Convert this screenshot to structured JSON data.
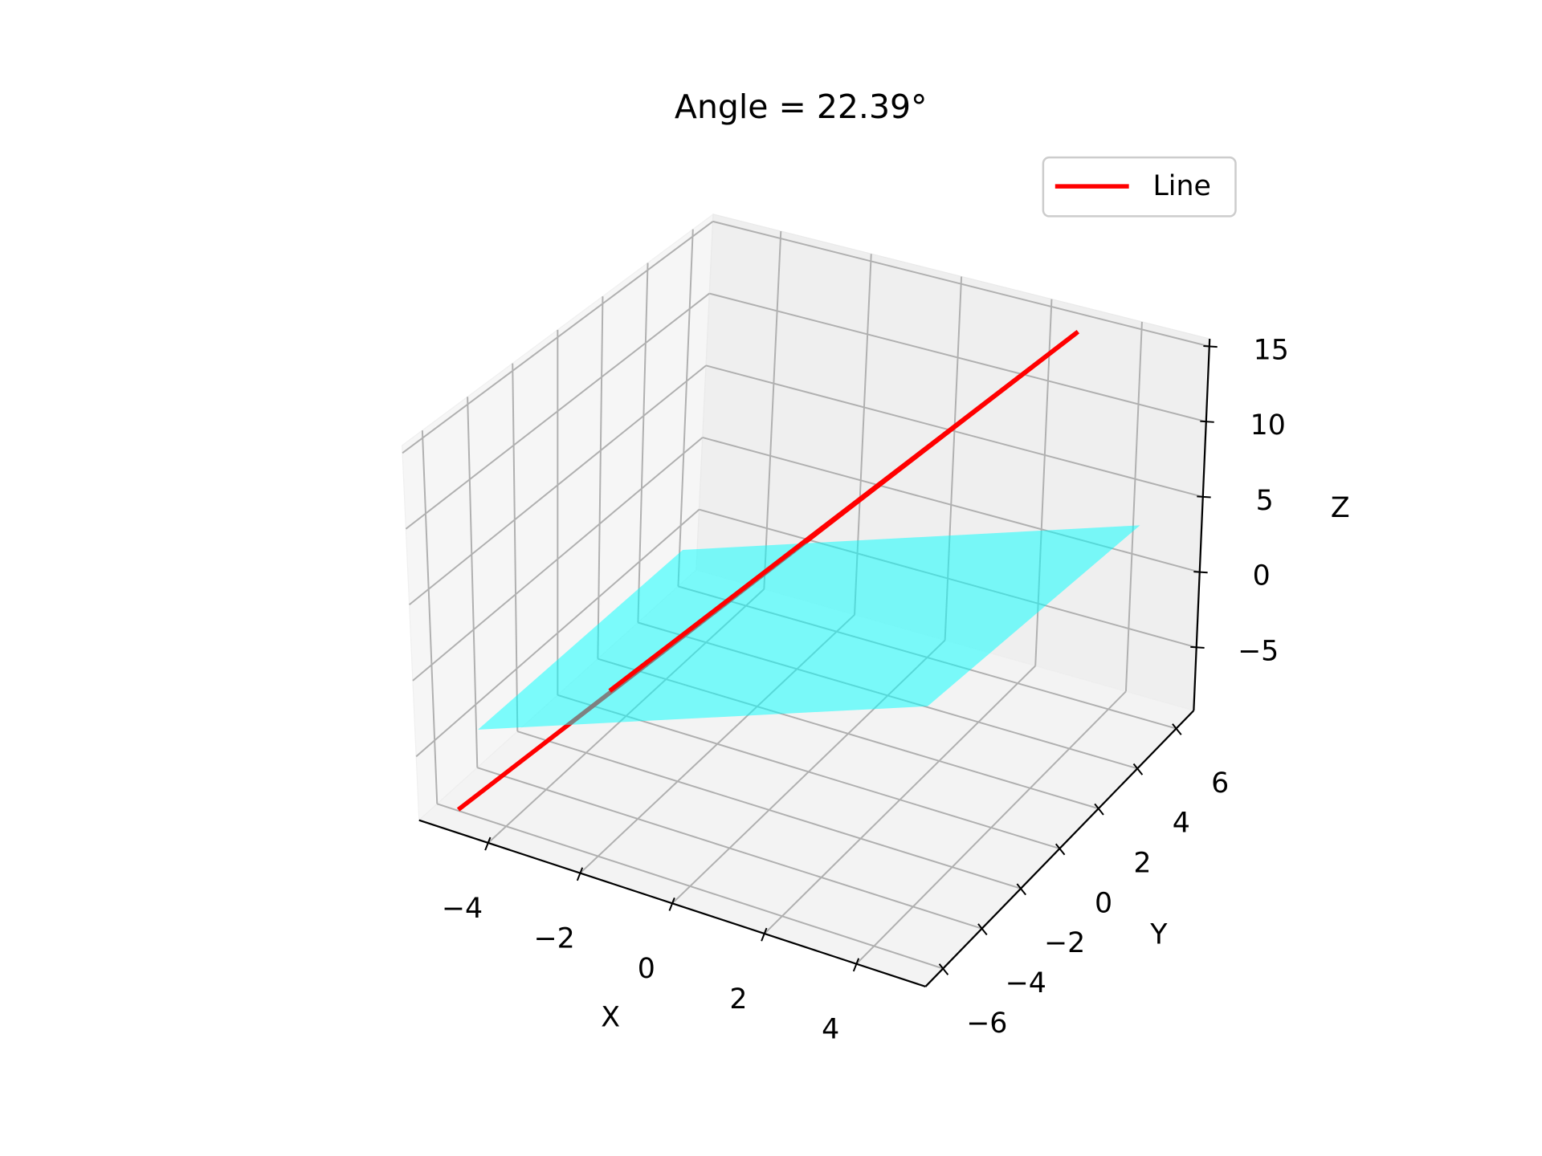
{
  "chart_data": {
    "type": "line3d",
    "title": "Angle = 22.39°",
    "xlabel": "X",
    "ylabel": "Y",
    "zlabel": "Z",
    "xlim": [
      -5.5,
      5.5
    ],
    "ylim": [
      -6.9,
      6.9
    ],
    "zlim": [
      -9.2,
      15.5
    ],
    "xticks": [
      {
        "value": -4,
        "label": "−4"
      },
      {
        "value": -2,
        "label": "−2"
      },
      0,
      2,
      4
    ],
    "yticks": [
      {
        "value": -6,
        "label": "−6"
      },
      {
        "value": -4,
        "label": "−4"
      },
      {
        "value": -2,
        "label": "−2"
      },
      0,
      2,
      4,
      6
    ],
    "zticks": [
      {
        "value": -5,
        "label": "−5"
      },
      0,
      5,
      10,
      15
    ],
    "grid": true,
    "legend": "upper right",
    "series": [
      {
        "name": "Line",
        "color": "#ff0000",
        "x": [
          -5,
          3
        ],
        "y": [
          -6,
          6
        ],
        "z": [
          -9,
          15
        ]
      }
    ],
    "surface": {
      "color": "#00ffff",
      "alpha": 0.5,
      "x": [
        -5,
        5
      ],
      "y": [
        -5,
        5
      ],
      "z": [
        [
          -5,
          5
        ],
        [
          -5,
          5
        ]
      ]
    }
  }
}
